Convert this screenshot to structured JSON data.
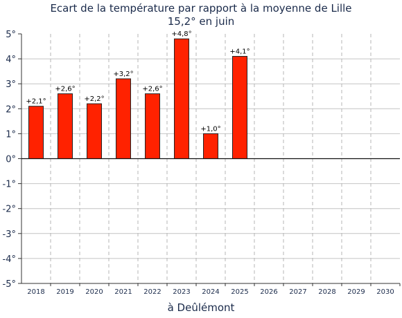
{
  "chart_data": {
    "type": "bar",
    "title": "Ecart de la température par rapport à la moyenne de Lille",
    "subtitle": "15,2° en juin",
    "xlabel": "à Deûlémont",
    "ylabel": "",
    "ylim": [
      -5,
      5
    ],
    "y_ticks": [
      "5°",
      "4°",
      "3°",
      "2°",
      "1°",
      "0°",
      "-1°",
      "-2°",
      "-3°",
      "-4°",
      "-5°"
    ],
    "categories": [
      "2018",
      "2019",
      "2020",
      "2021",
      "2022",
      "2023",
      "2024",
      "2025",
      "2026",
      "2027",
      "2028",
      "2029",
      "2030"
    ],
    "values": [
      2.1,
      2.6,
      2.2,
      3.2,
      2.6,
      4.8,
      1.0,
      4.1,
      null,
      null,
      null,
      null,
      null
    ],
    "data_labels": [
      "+2,1°",
      "+2,6°",
      "+2,2°",
      "+3,2°",
      "+2,6°",
      "+4,8°",
      "+1,0°",
      "+4,1°",
      "",
      "",
      "",
      "",
      ""
    ],
    "bar_color": "#ff2200",
    "grid": true,
    "legend": "none"
  }
}
